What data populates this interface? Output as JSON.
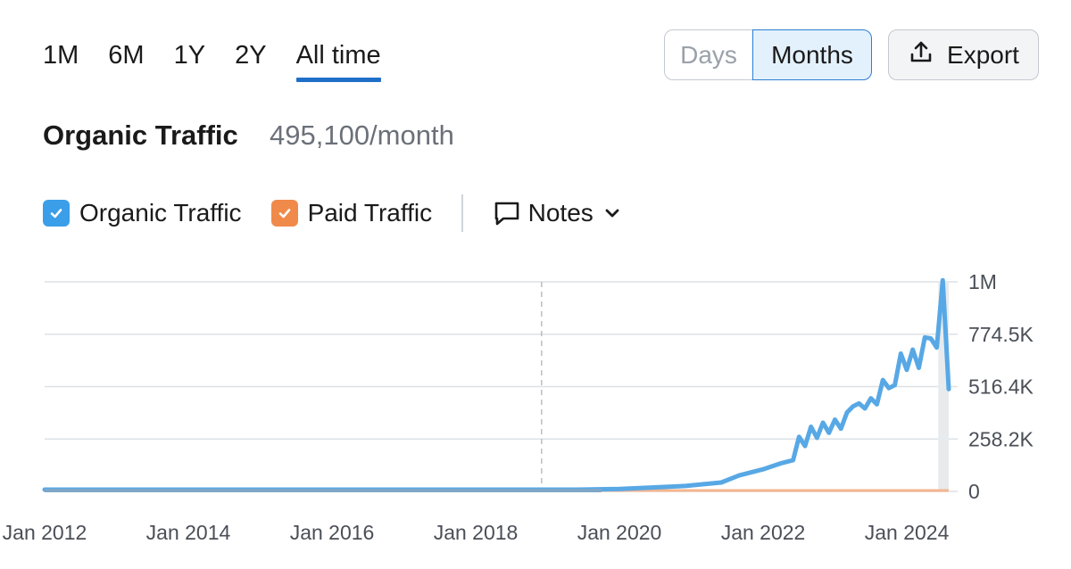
{
  "tabs": [
    {
      "label": "1M"
    },
    {
      "label": "6M"
    },
    {
      "label": "1Y"
    },
    {
      "label": "2Y"
    },
    {
      "label": "All time",
      "active": true
    }
  ],
  "view_toggle": {
    "days_label": "Days",
    "months_label": "Months",
    "selected": "Months"
  },
  "export": {
    "label": "Export",
    "icon": "upload-icon"
  },
  "header": {
    "title": "Organic Traffic",
    "value": "495,100/month"
  },
  "legend": {
    "organic": {
      "label": "Organic Traffic",
      "checked": true,
      "color": "#3a9ee8"
    },
    "paid": {
      "label": "Paid Traffic",
      "checked": true,
      "color": "#f08a4b"
    },
    "notes": {
      "label": "Notes",
      "icon": "comment-icon"
    }
  },
  "colors": {
    "organic_line": "#57a8e5",
    "paid_line": "#f4b58f",
    "accent": "#1f6fc8"
  },
  "chart_data": {
    "type": "line",
    "x_ticks": [
      "Jan 2012",
      "Jan 2014",
      "Jan 2016",
      "Jan 2018",
      "Jan 2020",
      "Jan 2022",
      "Jan 2024"
    ],
    "y_ticks": [
      "0",
      "258.2K",
      "516.4K",
      "774.5K",
      "1M"
    ],
    "ylim": [
      0,
      1032700
    ],
    "grid": true,
    "annotation_marker": "2018-12",
    "series": [
      {
        "name": "Organic Traffic",
        "points": [
          [
            "2012-01",
            0
          ],
          [
            "2019-06",
            0
          ],
          [
            "2020-01",
            3000
          ],
          [
            "2020-06",
            10000
          ],
          [
            "2020-12",
            18000
          ],
          [
            "2021-06",
            35000
          ],
          [
            "2021-09",
            70000
          ],
          [
            "2022-01",
            100000
          ],
          [
            "2022-04",
            130000
          ],
          [
            "2022-06",
            145000
          ],
          [
            "2022-07",
            260000
          ],
          [
            "2022-08",
            215000
          ],
          [
            "2022-09",
            310000
          ],
          [
            "2022-10",
            255000
          ],
          [
            "2022-11",
            330000
          ],
          [
            "2022-12",
            280000
          ],
          [
            "2023-01",
            345000
          ],
          [
            "2023-02",
            300000
          ],
          [
            "2023-03",
            380000
          ],
          [
            "2023-04",
            410000
          ],
          [
            "2023-05",
            425000
          ],
          [
            "2023-06",
            400000
          ],
          [
            "2023-07",
            450000
          ],
          [
            "2023-08",
            420000
          ],
          [
            "2023-09",
            540000
          ],
          [
            "2023-10",
            500000
          ],
          [
            "2023-11",
            515000
          ],
          [
            "2023-12",
            670000
          ],
          [
            "2024-01",
            590000
          ],
          [
            "2024-02",
            690000
          ],
          [
            "2024-03",
            600000
          ],
          [
            "2024-04",
            750000
          ],
          [
            "2024-05",
            745000
          ],
          [
            "2024-06",
            700000
          ],
          [
            "2024-07",
            1032000
          ],
          [
            "2024-08",
            495100
          ]
        ]
      },
      {
        "name": "Paid Traffic",
        "points": [
          [
            "2012-01",
            0
          ],
          [
            "2024-08",
            0
          ]
        ]
      }
    ]
  }
}
